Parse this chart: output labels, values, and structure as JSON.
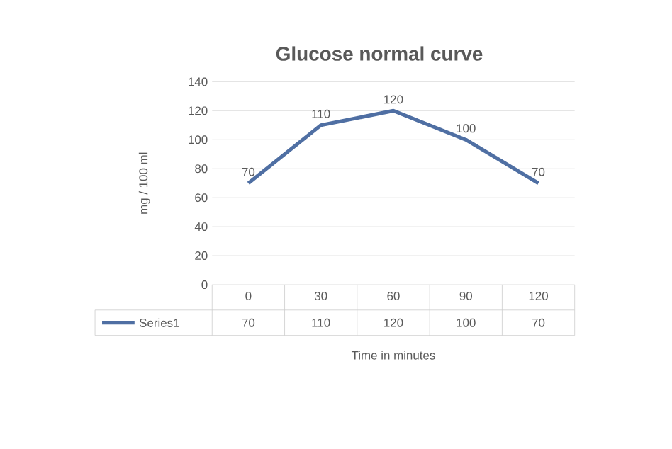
{
  "chart_data": {
    "type": "line",
    "title": "Glucose normal curve",
    "xlabel": "Time in minutes",
    "ylabel": "mg / 100 ml",
    "categories": [
      "0",
      "30",
      "60",
      "90",
      "120"
    ],
    "series": [
      {
        "name": "Series1",
        "color": "#4f6fa3",
        "values": [
          70,
          110,
          120,
          100,
          70
        ],
        "value_labels": [
          "70",
          "110",
          "120",
          "100",
          "70"
        ]
      }
    ],
    "ylim": [
      0,
      140
    ],
    "yticks": [
      0,
      20,
      40,
      60,
      80,
      100,
      120,
      140
    ],
    "grid": "y",
    "legend": "bottom",
    "marker": "none",
    "line_style": "solid"
  }
}
